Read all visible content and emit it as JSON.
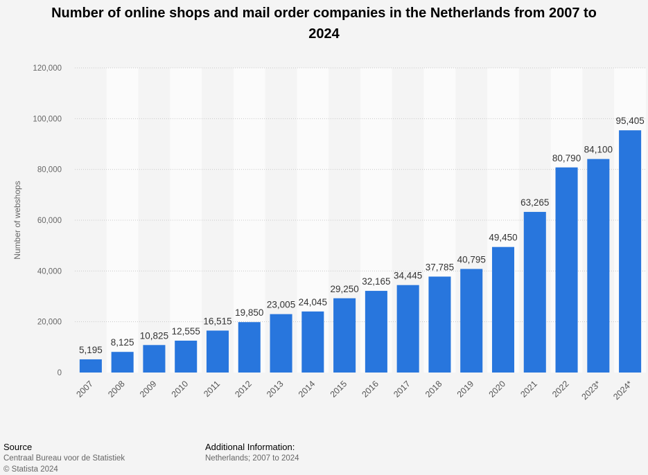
{
  "title_line1": "Number of online shops and mail order companies in the Netherlands from 2007 to",
  "title_line2": "2024",
  "chart_data": {
    "type": "bar",
    "title": "Number of online shops and mail order companies in the Netherlands from 2007 to 2024",
    "xlabel": "",
    "ylabel": "Number of webshops",
    "ylim": [
      0,
      120000
    ],
    "yticks": [
      0,
      20000,
      40000,
      60000,
      80000,
      100000,
      120000
    ],
    "ytick_labels": [
      "0",
      "20,000",
      "40,000",
      "60,000",
      "80,000",
      "100,000",
      "120,000"
    ],
    "grid": true,
    "categories": [
      "2007",
      "2008",
      "2009",
      "2010",
      "2011",
      "2012",
      "2013",
      "2014",
      "2015",
      "2016",
      "2017",
      "2018",
      "2019",
      "2020",
      "2021",
      "2022",
      "2023*",
      "2024*"
    ],
    "values": [
      5195,
      8125,
      10825,
      12555,
      16515,
      19850,
      23005,
      24045,
      29250,
      32165,
      34445,
      37785,
      40795,
      49450,
      63265,
      80790,
      84100,
      95405
    ],
    "data_labels": [
      "5,195",
      "8,125",
      "10,825",
      "12,555",
      "16,515",
      "19,850",
      "23,005",
      "24,045",
      "29,250",
      "32,165",
      "34,445",
      "37,785",
      "40,795",
      "49,450",
      "63,265",
      "80,790",
      "84,100",
      "95,405"
    ],
    "bar_color": "#2876dd"
  },
  "footer": {
    "source_heading": "Source",
    "source_text": "Centraal Bureau voor de Statistiek",
    "copyright": "© Statista 2024",
    "info_heading": "Additional Information:",
    "info_text": "Netherlands; 2007 to 2024"
  }
}
